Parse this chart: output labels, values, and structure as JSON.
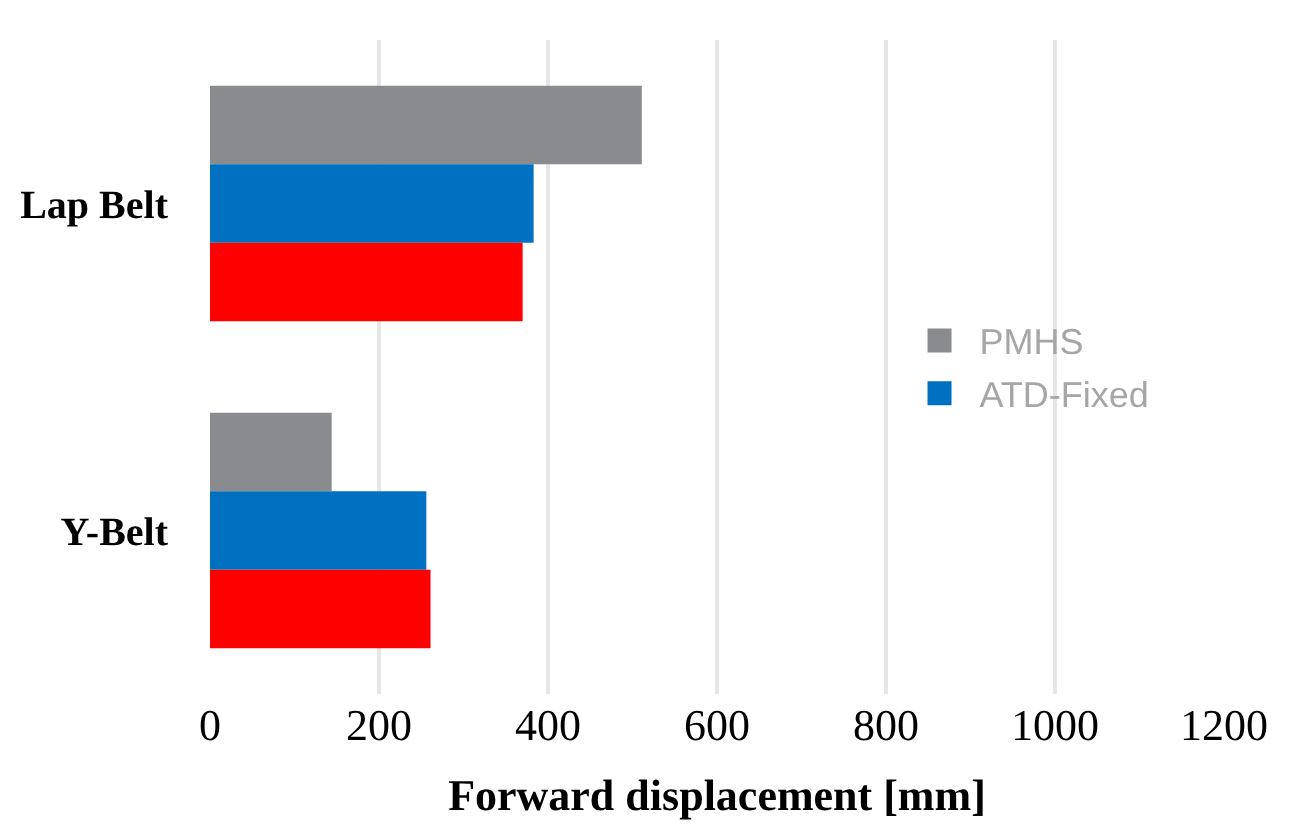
{
  "chart_data": {
    "type": "bar",
    "orientation": "horizontal",
    "xlabel": "Forward displacement [mm]",
    "categories": [
      "Lap Belt",
      "Y-Belt"
    ],
    "series": [
      {
        "name": "PMHS",
        "color": "#898b8e",
        "values": [
          511,
          144
        ]
      },
      {
        "name": "ATD-Fixed",
        "color": "#0070c0",
        "values": [
          383,
          256
        ]
      },
      {
        "color": "#ff0000",
        "values": [
          370,
          261
        ]
      }
    ],
    "xlim": [
      0,
      1200
    ],
    "xticks": [
      0,
      200,
      400,
      600,
      800,
      1000,
      1200
    ],
    "grid": "x",
    "legend": "right"
  }
}
